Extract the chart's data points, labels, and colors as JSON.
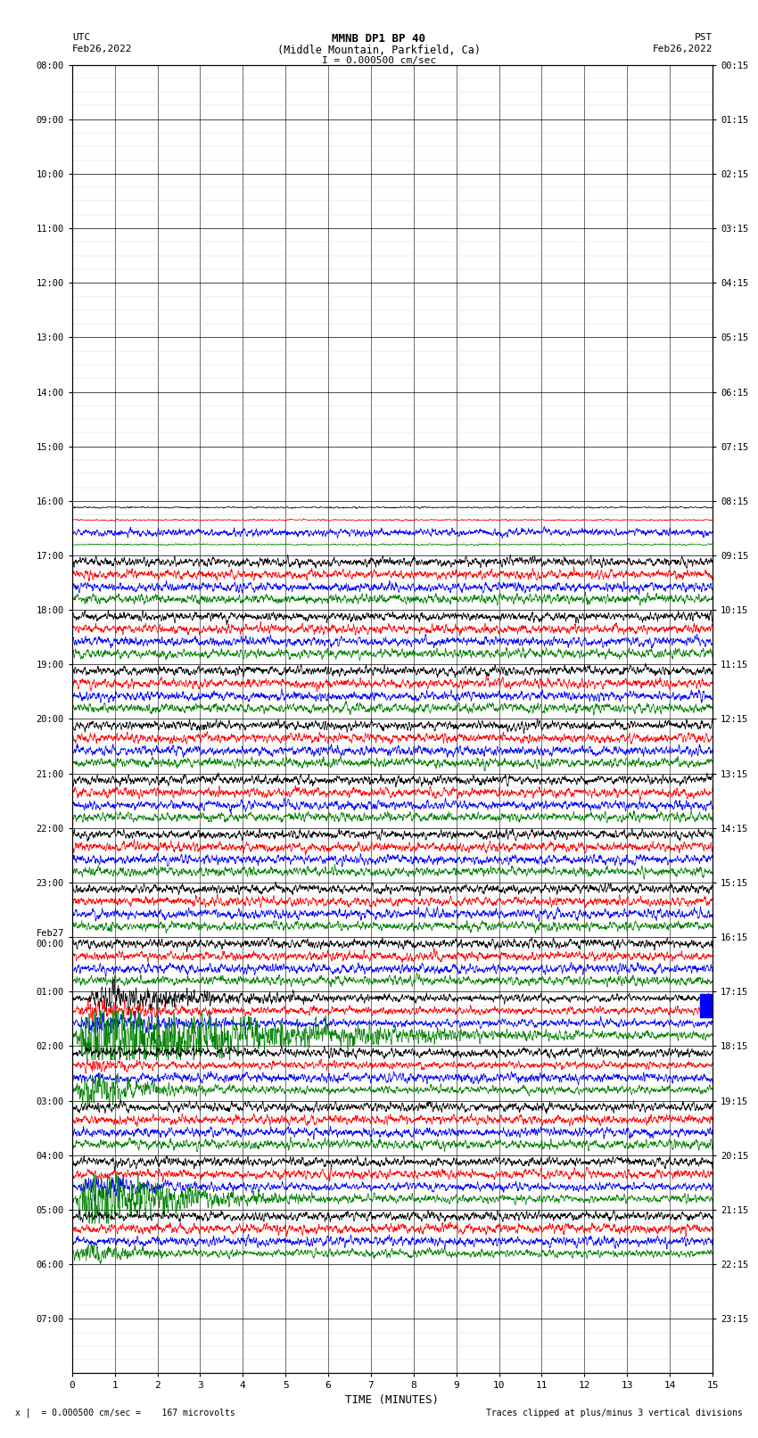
{
  "title_line1": "MMNB DP1 BP 40",
  "title_line2": "(Middle Mountain, Parkfield, Ca)",
  "title_line3": "I = 0.000500 cm/sec",
  "left_header1": "UTC",
  "left_header2": "Feb26,2022",
  "right_header1": "PST",
  "right_header2": "Feb26,2022",
  "xlabel": "TIME (MINUTES)",
  "footer_left": "x |  = 0.000500 cm/sec =    167 microvolts",
  "footer_right": "Traces clipped at plus/minus 3 vertical divisions",
  "utc_labels": [
    "08:00",
    "09:00",
    "10:00",
    "11:00",
    "12:00",
    "13:00",
    "14:00",
    "15:00",
    "16:00",
    "17:00",
    "18:00",
    "19:00",
    "20:00",
    "21:00",
    "22:00",
    "23:00",
    "Feb27\n00:00",
    "01:00",
    "02:00",
    "03:00",
    "04:00",
    "05:00",
    "06:00",
    "07:00"
  ],
  "pst_labels": [
    "00:15",
    "01:15",
    "02:15",
    "03:15",
    "04:15",
    "05:15",
    "06:15",
    "07:15",
    "08:15",
    "09:15",
    "10:15",
    "11:15",
    "12:15",
    "13:15",
    "14:15",
    "15:15",
    "16:15",
    "17:15",
    "18:15",
    "19:15",
    "20:15",
    "21:15",
    "22:15",
    "23:15"
  ],
  "n_rows": 24,
  "n_minutes": 15,
  "background_color": "#ffffff",
  "trace_colors_order": [
    "black",
    "red",
    "blue",
    "green"
  ],
  "trace_colors_hex": [
    "#000000",
    "#ff0000",
    "#0000ff",
    "#008000"
  ]
}
